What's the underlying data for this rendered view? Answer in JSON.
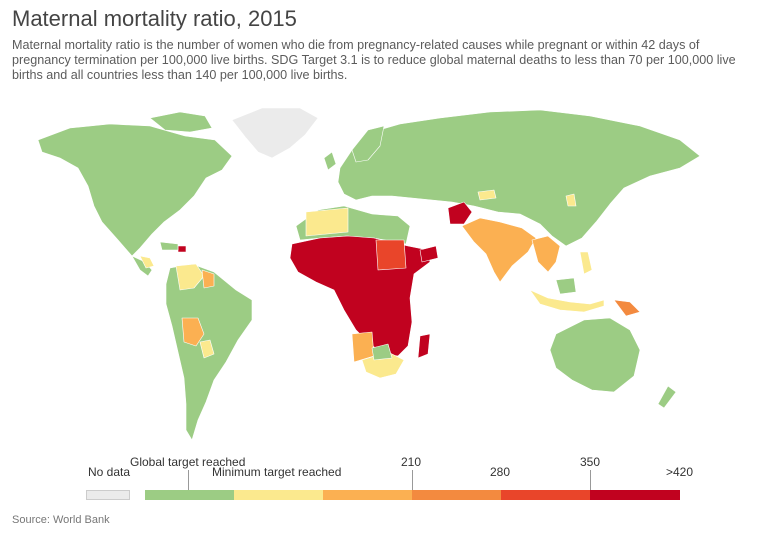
{
  "title": "Maternal mortality ratio, 2015",
  "subtitle": "Maternal mortality ratio is the number of women who die from pregnancy-related causes while pregnant or within 42 days of pregnancy termination per 100,000 live births. SDG Target 3.1 is to reduce global maternal deaths to less than 70 per 100,000 live births and all countries less than 140 per 100,000 live births.",
  "legend": {
    "no_data": "No data",
    "global_target": "Global target reached",
    "minimum_target": "Minimum target reached",
    "t210": "210",
    "t280": "280",
    "t350": "350",
    "t420": ">420",
    "colors": {
      "no_data": "#ebebeb",
      "c1": "#9ccc84",
      "c2": "#fbe98e",
      "c3": "#fbb052",
      "c4": "#f38a3f",
      "c5": "#e9452a",
      "c6": "#c1021f"
    }
  },
  "source": "Source: World Bank"
}
